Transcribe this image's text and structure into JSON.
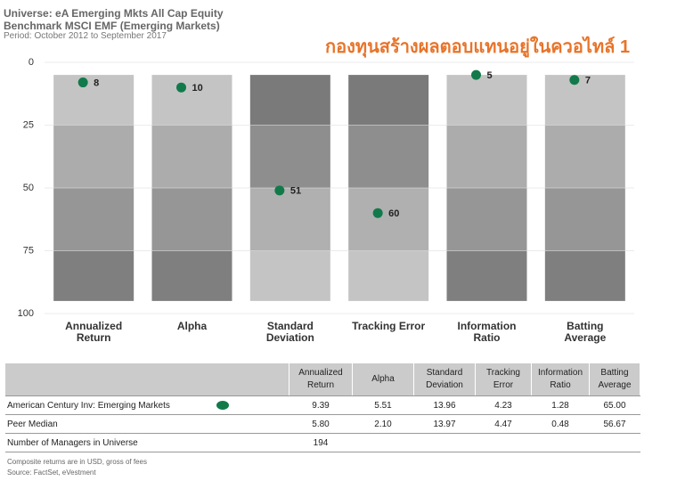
{
  "chart_data": {
    "type": "range_dot",
    "title": "Universe: eA Emerging Mkts All Cap Equity",
    "subtitle": "Benchmark MSCI EMF (Emerging Markets)",
    "period": "Period: October 2012 to September 2017",
    "annotation": "กองทุนสร้างผลตอบแทนอยู่ในควอไทล์ 1",
    "categories": [
      "Annualized Return",
      "Alpha",
      "Standard Deviation",
      "Tracking Error",
      "Information Ratio",
      "Batting Average"
    ],
    "band_edges": [
      5,
      25,
      50,
      75,
      95
    ],
    "band_colors": [
      [
        "#c4c4c4",
        "#acacac",
        "#969696",
        "#7f7f7f"
      ],
      [
        "#c4c4c4",
        "#acacac",
        "#969696",
        "#7f7f7f"
      ],
      [
        "#7a7a7a",
        "#8e8e8e",
        "#b0b0b0",
        "#c4c4c4"
      ],
      [
        "#7a7a7a",
        "#8e8e8e",
        "#b0b0b0",
        "#c4c4c4"
      ],
      [
        "#c4c4c4",
        "#acacac",
        "#969696",
        "#7f7f7f"
      ],
      [
        "#c4c4c4",
        "#acacac",
        "#969696",
        "#7f7f7f"
      ]
    ],
    "series": [
      {
        "name": "American Century Inv: Emerging Markets",
        "color": "#127a4a",
        "values": [
          8,
          10,
          51,
          60,
          5,
          7
        ]
      }
    ],
    "ylim": [
      0,
      100
    ],
    "yticks": [
      0,
      25,
      50,
      75,
      100
    ],
    "inverted": true,
    "grid": true
  },
  "table": {
    "header": [
      "Annualized Return",
      "Alpha",
      "Standard Deviation",
      "Tracking Error",
      "Information Ratio",
      "Batting Average"
    ],
    "rows": [
      [
        "American Century Inv: Emerging Markets",
        "9.39",
        "5.51",
        "13.96",
        "4.23",
        "1.28",
        "65.00"
      ],
      [
        "Peer Median",
        "5.80",
        "2.10",
        "13.97",
        "4.47",
        "0.48",
        "56.67"
      ],
      [
        "Number of Managers in Universe",
        "194"
      ]
    ],
    "notes": [
      "Composite returns are in USD, gross of fees",
      "Source: FactSet, eVestment"
    ]
  }
}
